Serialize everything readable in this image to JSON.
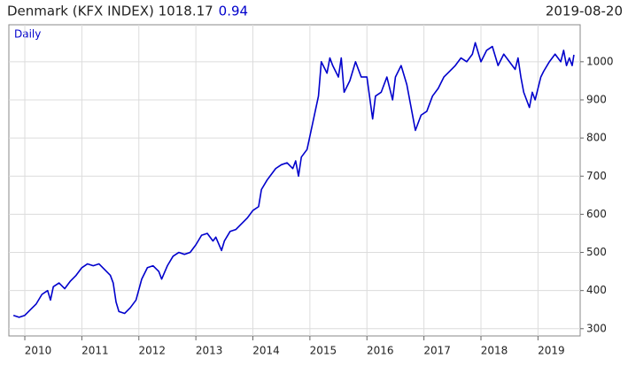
{
  "chart_data": {
    "type": "line",
    "title": "Denmark (KFX INDEX) 1018.17",
    "change": "0.94",
    "date": "2019-08-20",
    "frequency": "Daily",
    "x": [
      2009.8,
      2009.9,
      2010.0,
      2010.1,
      2010.2,
      2010.3,
      2010.4,
      2010.45,
      2010.5,
      2010.6,
      2010.7,
      2010.8,
      2010.9,
      2011.0,
      2011.1,
      2011.2,
      2011.3,
      2011.4,
      2011.5,
      2011.55,
      2011.6,
      2011.65,
      2011.75,
      2011.85,
      2011.95,
      2012.05,
      2012.15,
      2012.25,
      2012.35,
      2012.4,
      2012.5,
      2012.6,
      2012.7,
      2012.8,
      2012.9,
      2013.0,
      2013.1,
      2013.2,
      2013.3,
      2013.35,
      2013.45,
      2013.5,
      2013.6,
      2013.7,
      2013.8,
      2013.9,
      2014.0,
      2014.1,
      2014.15,
      2014.25,
      2014.3,
      2014.4,
      2014.5,
      2014.6,
      2014.7,
      2014.75,
      2014.8,
      2014.85,
      2014.95,
      2015.05,
      2015.15,
      2015.2,
      2015.3,
      2015.35,
      2015.4,
      2015.5,
      2015.55,
      2015.6,
      2015.7,
      2015.8,
      2015.9,
      2016.0,
      2016.1,
      2016.15,
      2016.25,
      2016.35,
      2016.45,
      2016.5,
      2016.6,
      2016.7,
      2016.75,
      2016.85,
      2016.95,
      2017.05,
      2017.15,
      2017.25,
      2017.35,
      2017.45,
      2017.55,
      2017.65,
      2017.75,
      2017.85,
      2017.9,
      2018.0,
      2018.1,
      2018.2,
      2018.3,
      2018.4,
      2018.5,
      2018.6,
      2018.65,
      2018.7,
      2018.75,
      2018.8,
      2018.85,
      2018.9,
      2018.95,
      2019.0,
      2019.05,
      2019.1,
      2019.2,
      2019.3,
      2019.4,
      2019.45,
      2019.5,
      2019.55,
      2019.6,
      2019.63
    ],
    "series": [
      {
        "color": "#0000cc",
        "values": [
          335,
          330,
          335,
          350,
          365,
          390,
          400,
          375,
          410,
          420,
          405,
          425,
          440,
          460,
          470,
          465,
          470,
          455,
          440,
          420,
          370,
          345,
          340,
          355,
          375,
          430,
          460,
          465,
          450,
          430,
          465,
          490,
          500,
          495,
          500,
          520,
          545,
          550,
          530,
          540,
          505,
          530,
          555,
          560,
          575,
          590,
          610,
          620,
          665,
          690,
          700,
          720,
          730,
          735,
          720,
          740,
          700,
          750,
          770,
          840,
          910,
          1000,
          970,
          1010,
          990,
          960,
          1010,
          920,
          950,
          1000,
          960,
          960,
          850,
          910,
          920,
          960,
          900,
          960,
          990,
          940,
          900,
          820,
          860,
          870,
          910,
          930,
          960,
          975,
          990,
          1010,
          1000,
          1020,
          1050,
          1000,
          1030,
          1040,
          990,
          1020,
          1000,
          980,
          1010,
          960,
          920,
          900,
          880,
          920,
          900,
          930,
          960,
          975,
          1000,
          1020,
          1000,
          1030,
          990,
          1010,
          990,
          1018.17
        ]
      }
    ],
    "xlim": [
      2009.72,
      2019.74
    ],
    "xticks": [
      2010,
      2011,
      2012,
      2013,
      2014,
      2015,
      2016,
      2017,
      2018,
      2019
    ],
    "ylim": [
      281,
      1097
    ],
    "yticks": [
      300,
      400,
      500,
      600,
      700,
      800,
      900,
      1000
    ],
    "grid": true
  }
}
